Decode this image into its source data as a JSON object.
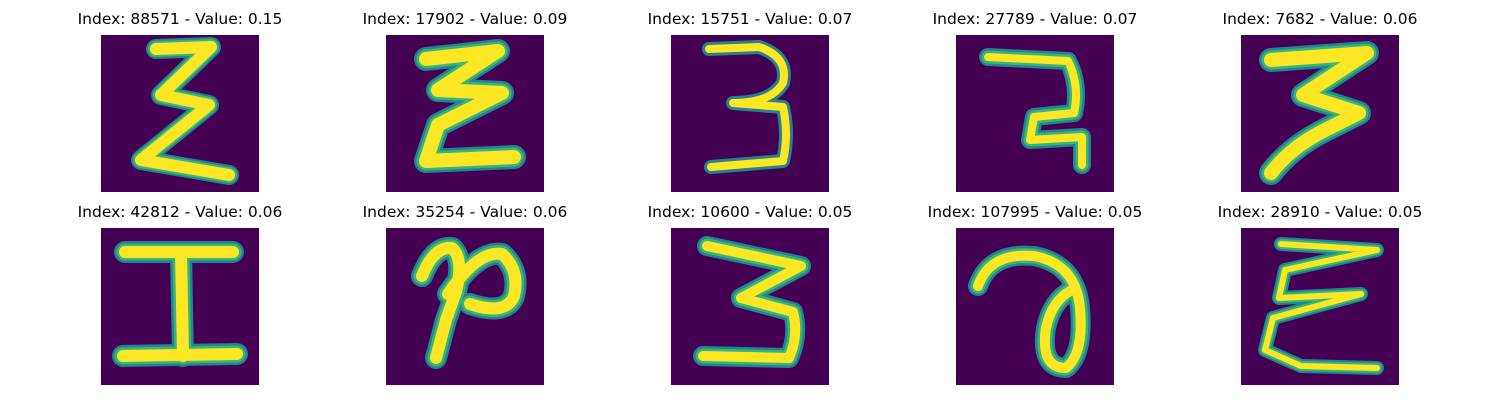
{
  "figure": {
    "background": "#ffffff",
    "panel_background": "#440154",
    "stroke_colors": [
      "#fde725",
      "#b5de2b",
      "#35b779",
      "#26828e"
    ],
    "panels": [
      {
        "title": "Index: 88571 - Value: 0.15",
        "index": 88571,
        "value": 0.15,
        "glyph": "epsilon-like"
      },
      {
        "title": "Index: 17902 - Value: 0.09",
        "index": 17902,
        "value": 0.09,
        "glyph": "epsilon-like"
      },
      {
        "title": "Index: 15751 - Value: 0.07",
        "index": 15751,
        "value": 0.07,
        "glyph": "3"
      },
      {
        "title": "Index: 27789 - Value: 0.07",
        "index": 27789,
        "value": 0.07,
        "glyph": "7-like"
      },
      {
        "title": "Index: 7682 - Value: 0.06",
        "index": 7682,
        "value": 0.06,
        "glyph": "3-like"
      },
      {
        "title": "Index: 42812 - Value: 0.06",
        "index": 42812,
        "value": 0.06,
        "glyph": "I"
      },
      {
        "title": "Index: 35254 - Value: 0.06",
        "index": 35254,
        "value": 0.06,
        "glyph": "2-like"
      },
      {
        "title": "Index: 10600 - Value: 0.05",
        "index": 10600,
        "value": 0.05,
        "glyph": "3-like"
      },
      {
        "title": "Index: 107995 - Value: 0.05",
        "index": 107995,
        "value": 0.05,
        "glyph": "a-like"
      },
      {
        "title": "Index: 28910 - Value: 0.05",
        "index": 28910,
        "value": 0.05,
        "glyph": "epsilon-like"
      }
    ]
  }
}
